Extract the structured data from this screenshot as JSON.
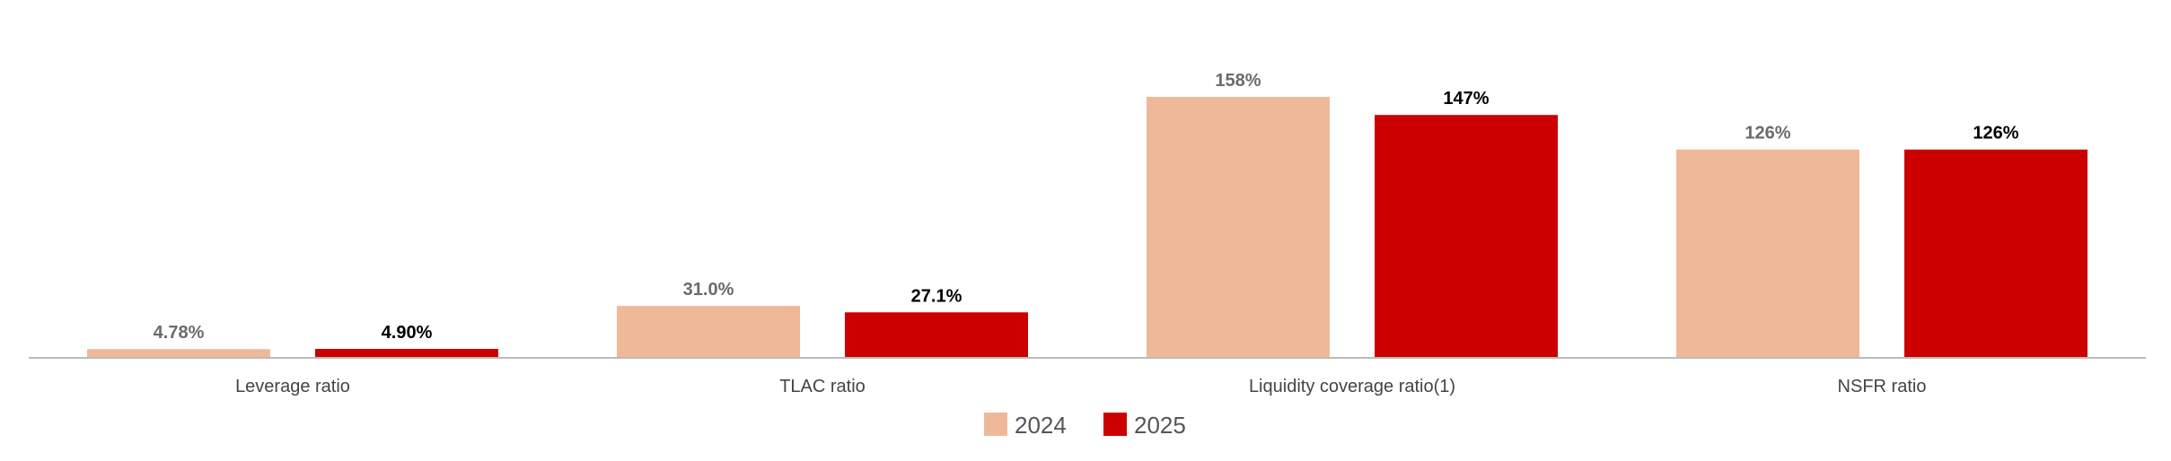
{
  "chart_data": {
    "type": "bar",
    "title": "",
    "xlabel": "",
    "ylabel": "",
    "categories": [
      "Leverage ratio",
      "TLAC ratio",
      "Liquidity coverage ratio(1)",
      "NSFR ratio"
    ],
    "series": [
      {
        "name": "2024",
        "color": "#EFB999",
        "label_color": "#6b6b6b",
        "values": [
          4.78,
          31.0,
          158,
          126
        ],
        "labels": [
          "4.78%",
          "31.0%",
          "158%",
          "126%"
        ]
      },
      {
        "name": "2025",
        "color": "#CC0000",
        "label_color": "#000000",
        "values": [
          4.9,
          27.1,
          147,
          126
        ],
        "labels": [
          "4.90%",
          "27.1%",
          "147%",
          "126%"
        ]
      }
    ],
    "ylim": [
      0,
      165
    ],
    "grid": false,
    "legend_position": "bottom-center",
    "axis_color": "#bbbbbb"
  }
}
